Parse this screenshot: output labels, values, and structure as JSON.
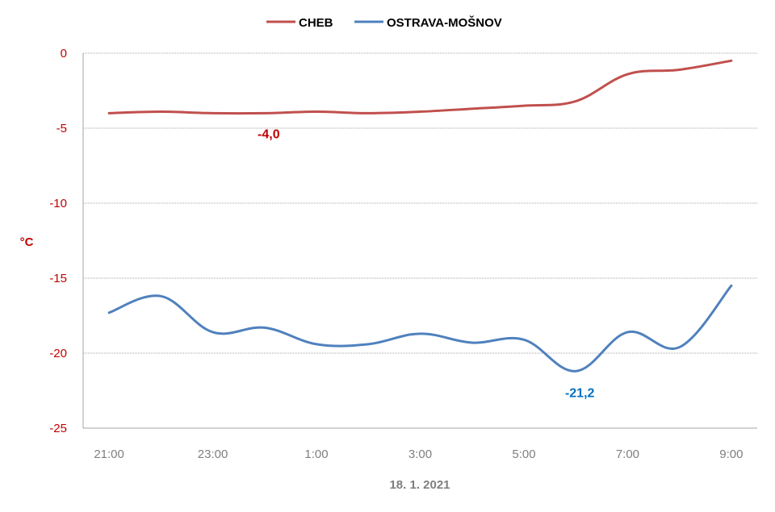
{
  "chart_data": {
    "type": "line",
    "x": [
      "21:00",
      "22:00",
      "23:00",
      "0:00",
      "1:00",
      "2:00",
      "3:00",
      "4:00",
      "5:00",
      "6:00",
      "7:00",
      "8:00",
      "9:00"
    ],
    "x_tick_labels": [
      "21:00",
      "23:00",
      "1:00",
      "3:00",
      "5:00",
      "7:00",
      "9:00"
    ],
    "xlabel": "18. 1. 2021",
    "ylabel": "°C",
    "ylim": [
      -25,
      0
    ],
    "y_ticks": [
      0,
      -5,
      -10,
      -15,
      -20,
      -25
    ],
    "grid": "horizontal",
    "legend_position": "top",
    "series": [
      {
        "name": "CHEB",
        "color": "#C0504D",
        "values": [
          -4.0,
          -3.9,
          -4.0,
          -4.0,
          -3.9,
          -4.0,
          -3.9,
          -3.7,
          -3.5,
          -3.2,
          -1.4,
          -1.1,
          -0.5
        ]
      },
      {
        "name": "OSTRAVA-MOŠNOV",
        "color": "#4F81BD",
        "values": [
          -17.3,
          -16.2,
          -18.6,
          -18.3,
          -19.4,
          -19.4,
          -18.7,
          -19.3,
          -19.1,
          -21.2,
          -18.6,
          -19.6,
          -15.5
        ]
      }
    ],
    "annotations": [
      {
        "text": "-4,0",
        "x": "0:00",
        "y": -4.0,
        "color": "#C00000"
      },
      {
        "text": "-21,2",
        "x": "6:00",
        "y": -21.2,
        "color": "#0070C0"
      }
    ],
    "axis_text_color_y": "#C00000",
    "axis_text_color_x": "#7F7F7F"
  }
}
